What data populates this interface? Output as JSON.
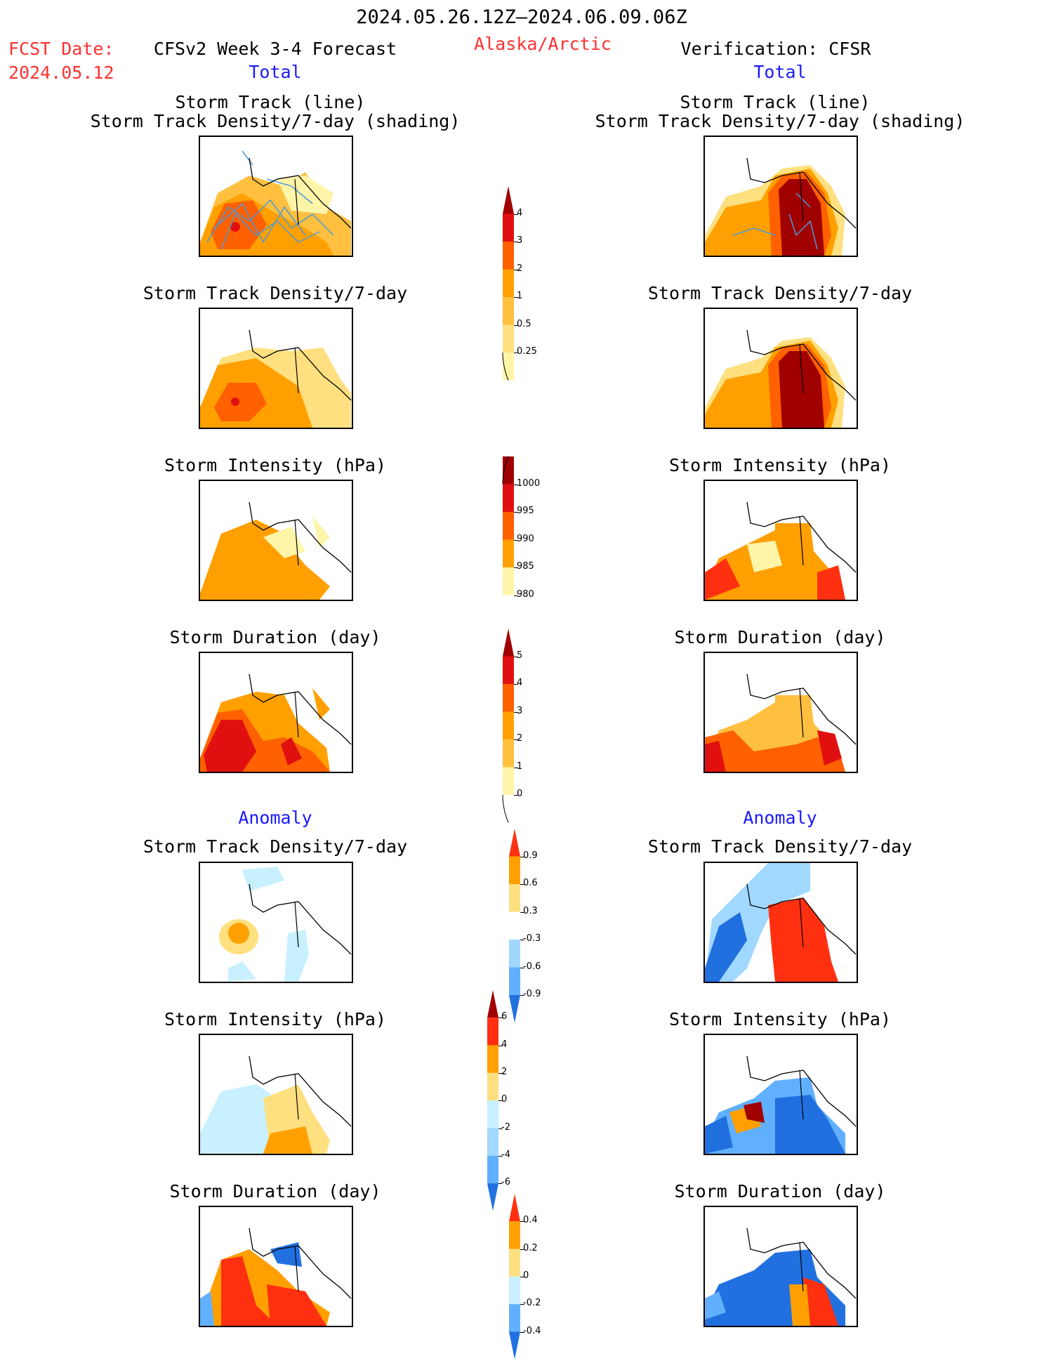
{
  "header": {
    "period": "2024.05.26.12Z–2024.06.09.06Z",
    "fcst_label": "FCST Date:",
    "fcst_date": "2024.05.12",
    "model": "CFSv2 Week 3-4 Forecast",
    "region": "Alaska/Arctic",
    "verification": "Verification: CFSR"
  },
  "sections": {
    "total": "Total",
    "anomaly": "Anomaly"
  },
  "panel_titles": {
    "track_line": "Storm Track (line)",
    "track_shading": "Storm Track Density/7-day (shading)",
    "density": "Storm Track Density/7-day",
    "intensity": "Storm Intensity (hPa)",
    "duration": "Storm Duration (day)"
  },
  "colors": {
    "pale_yellow": "#fff5a8",
    "yellow": "#ffe080",
    "light_orange": "#ffc040",
    "orange": "#ffa000",
    "dark_orange": "#ff6000",
    "red": "#e01010",
    "dark_red": "#a00000",
    "light_blue": "#c8f0ff",
    "blue1": "#a0d8ff",
    "blue2": "#60b0ff",
    "blue3": "#2070e0",
    "track_line": "#4a9ad8"
  },
  "chart_data": [
    {
      "type": "heatmap",
      "name": "colorbar-density-total",
      "levels": [
        "0.25",
        "0.5",
        "1",
        "2",
        "3",
        "4"
      ],
      "colors": [
        "#fff5a8",
        "#ffe080",
        "#ffc040",
        "#ffa000",
        "#ff6000",
        "#e01010",
        "#a00000"
      ]
    },
    {
      "type": "heatmap",
      "name": "colorbar-intensity-total",
      "levels": [
        "1000",
        "995",
        "990",
        "985",
        "980"
      ],
      "colors": [
        "#ffffff",
        "#fff5a8",
        "#ffa000",
        "#ff6000",
        "#e01010",
        "#a00000"
      ]
    },
    {
      "type": "heatmap",
      "name": "colorbar-duration-total",
      "levels": [
        "0",
        "1",
        "2",
        "3",
        "4",
        "5"
      ],
      "colors": [
        "#ffffff",
        "#fff5a8",
        "#ffc040",
        "#ffa000",
        "#ff6000",
        "#e01010",
        "#a00000"
      ]
    },
    {
      "type": "heatmap",
      "name": "colorbar-density-anomaly",
      "levels": [
        "-0.9",
        "-0.6",
        "-0.3",
        "0.3",
        "0.6",
        "0.9"
      ],
      "colors": [
        "#2070e0",
        "#60b0ff",
        "#a0d8ff",
        "#ffffff",
        "#ffe080",
        "#ffa000",
        "#ff3010"
      ]
    },
    {
      "type": "heatmap",
      "name": "colorbar-intensity-anomaly",
      "levels": [
        "-6",
        "-4",
        "-2",
        "0",
        "2",
        "4",
        "6"
      ],
      "colors": [
        "#2070e0",
        "#60b0ff",
        "#a0d8ff",
        "#c8f0ff",
        "#ffe080",
        "#ffa000",
        "#ff3010",
        "#a00000"
      ]
    },
    {
      "type": "heatmap",
      "name": "colorbar-duration-anomaly",
      "levels": [
        "-0.4",
        "-0.2",
        "0",
        "0.2",
        "0.4"
      ],
      "colors": [
        "#2070e0",
        "#60b0ff",
        "#c8f0ff",
        "#ffe080",
        "#ffa000",
        "#ff3010"
      ]
    }
  ]
}
